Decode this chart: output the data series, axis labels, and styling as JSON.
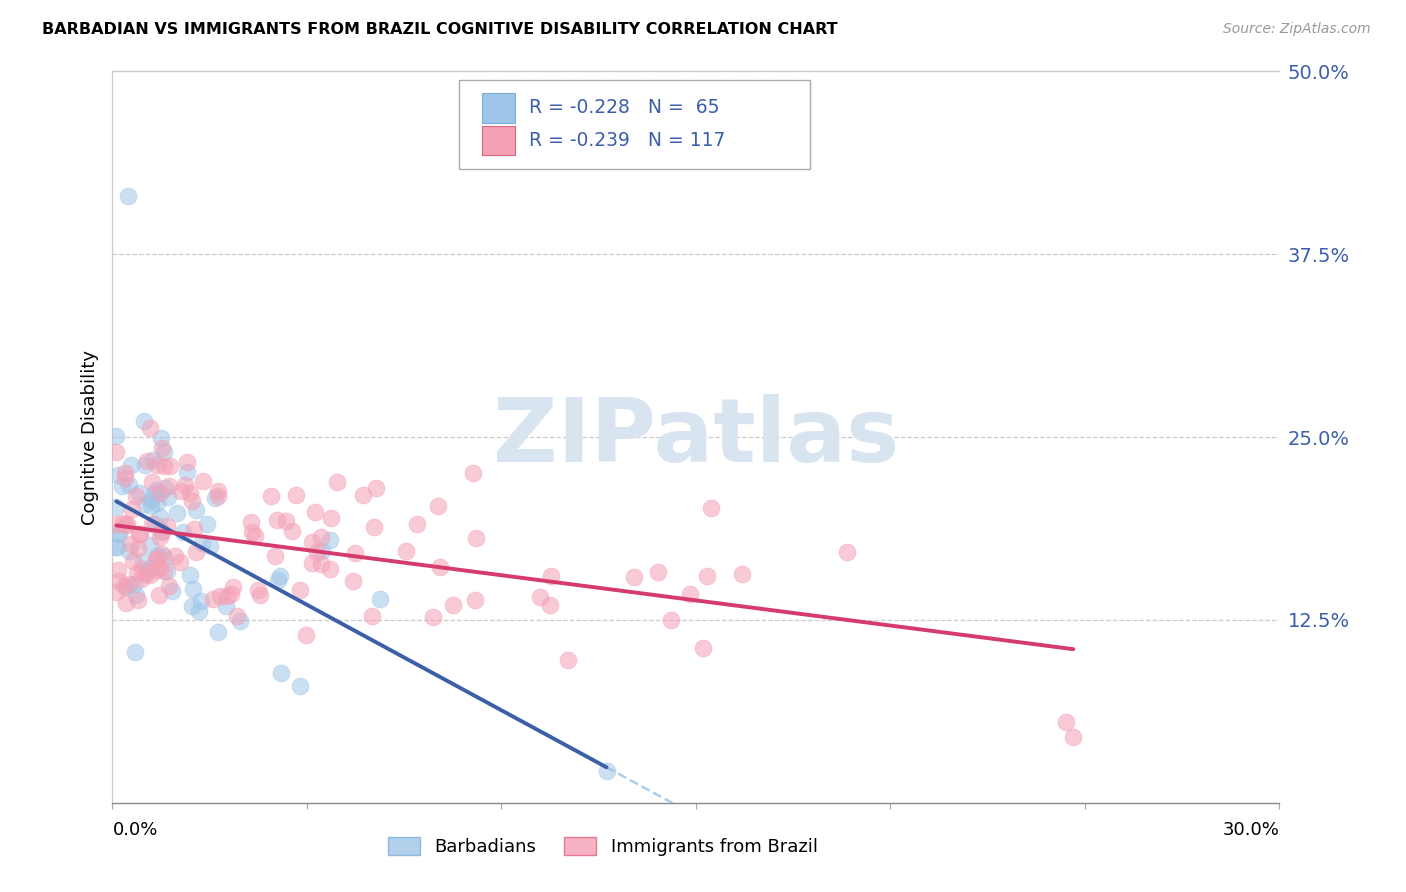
{
  "title": "BARBADIAN VS IMMIGRANTS FROM BRAZIL COGNITIVE DISABILITY CORRELATION CHART",
  "source": "Source: ZipAtlas.com",
  "ylabel": "Cognitive Disability",
  "right_yticks": [
    0.0,
    0.125,
    0.25,
    0.375,
    0.5
  ],
  "right_yticklabels": [
    "",
    "12.5%",
    "25.0%",
    "37.5%",
    "50.0%"
  ],
  "legend_blue_r": "R = -0.228",
  "legend_blue_n": "N =  65",
  "legend_pink_r": "R = -0.239",
  "legend_pink_n": "N = 117",
  "legend_blue_label": "Barbadians",
  "legend_pink_label": "Immigrants from Brazil",
  "blue_color": "#9fc5e8",
  "pink_color": "#f4a0b5",
  "line_blue": "#3c5fa8",
  "line_pink": "#d63b6e",
  "line_dashed_color": "#9fc5e8",
  "text_blue": "#3c5fa8",
  "xlim": [
    0.0,
    0.3
  ],
  "ylim": [
    0.0,
    0.5
  ],
  "grid_color": "#cccccc",
  "spine_color": "#cccccc",
  "watermark_color": "#d8e4f0",
  "blue_n": 65,
  "pink_n": 117,
  "blue_r": -0.228,
  "pink_r": -0.239
}
